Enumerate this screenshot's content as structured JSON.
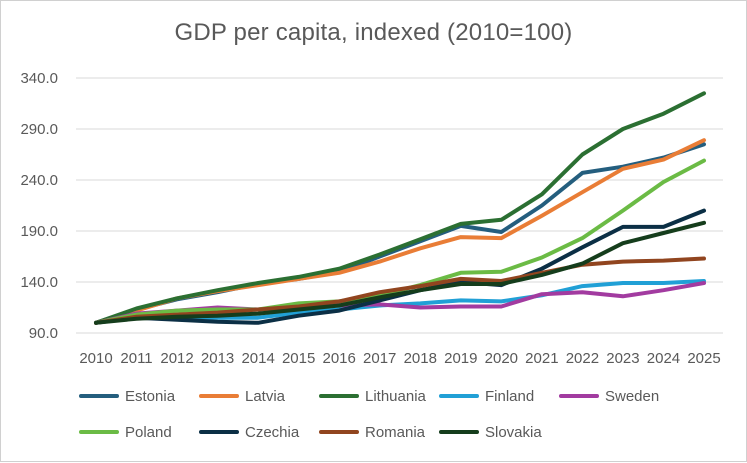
{
  "chart_data": {
    "type": "line",
    "title": "GDP per capita, indexed (2010=100)",
    "xlabel": "",
    "ylabel": "",
    "categories": [
      "2010",
      "2011",
      "2012",
      "2013",
      "2014",
      "2015",
      "2016",
      "2017",
      "2018",
      "2019",
      "2020",
      "2021",
      "2022",
      "2023",
      "2024",
      "2025"
    ],
    "ylim": [
      90,
      340
    ],
    "yticks": [
      "90.0",
      "140.0",
      "190.0",
      "240.0",
      "290.0",
      "340.0"
    ],
    "grid": "horizontal",
    "legend_position": "bottom",
    "series": [
      {
        "name": "Estonia",
        "color": "#245e7e",
        "values": [
          100,
          113,
          123,
          130,
          138,
          143,
          150,
          165,
          180,
          195,
          189,
          215,
          247,
          253,
          262,
          275
        ]
      },
      {
        "name": "Latvia",
        "color": "#e97d36",
        "values": [
          100,
          112,
          124,
          131,
          137,
          143,
          149,
          160,
          173,
          184,
          183,
          205,
          228,
          251,
          260,
          279
        ]
      },
      {
        "name": "Lithuania",
        "color": "#2b6f32",
        "values": [
          100,
          114,
          124,
          132,
          139,
          145,
          153,
          167,
          182,
          197,
          201,
          226,
          265,
          290,
          305,
          325
        ]
      },
      {
        "name": "Finland",
        "color": "#21a0d6",
        "values": [
          100,
          106,
          105,
          105,
          105,
          110,
          113,
          117,
          119,
          122,
          121,
          127,
          136,
          139,
          139,
          141
        ]
      },
      {
        "name": "Sweden",
        "color": "#a23ba0",
        "values": [
          100,
          109,
          112,
          115,
          113,
          116,
          117,
          118,
          115,
          116,
          116,
          128,
          130,
          126,
          132,
          139
        ]
      },
      {
        "name": "Poland",
        "color": "#6bbb45",
        "values": [
          100,
          108,
          112,
          113,
          113,
          119,
          121,
          127,
          137,
          149,
          150,
          164,
          183,
          210,
          238,
          259
        ]
      },
      {
        "name": "Czechia",
        "color": "#0b2f45",
        "values": [
          100,
          105,
          103,
          101,
          100,
          107,
          112,
          122,
          132,
          140,
          137,
          153,
          174,
          194,
          194,
          210
        ]
      },
      {
        "name": "Romania",
        "color": "#91451f",
        "values": [
          100,
          106,
          108,
          110,
          113,
          116,
          121,
          130,
          136,
          143,
          141,
          149,
          157,
          160,
          161,
          163
        ]
      },
      {
        "name": "Slovakia",
        "color": "#153d1c",
        "values": [
          100,
          104,
          106,
          107,
          109,
          113,
          117,
          125,
          132,
          138,
          138,
          147,
          158,
          178,
          188,
          198
        ]
      }
    ]
  }
}
